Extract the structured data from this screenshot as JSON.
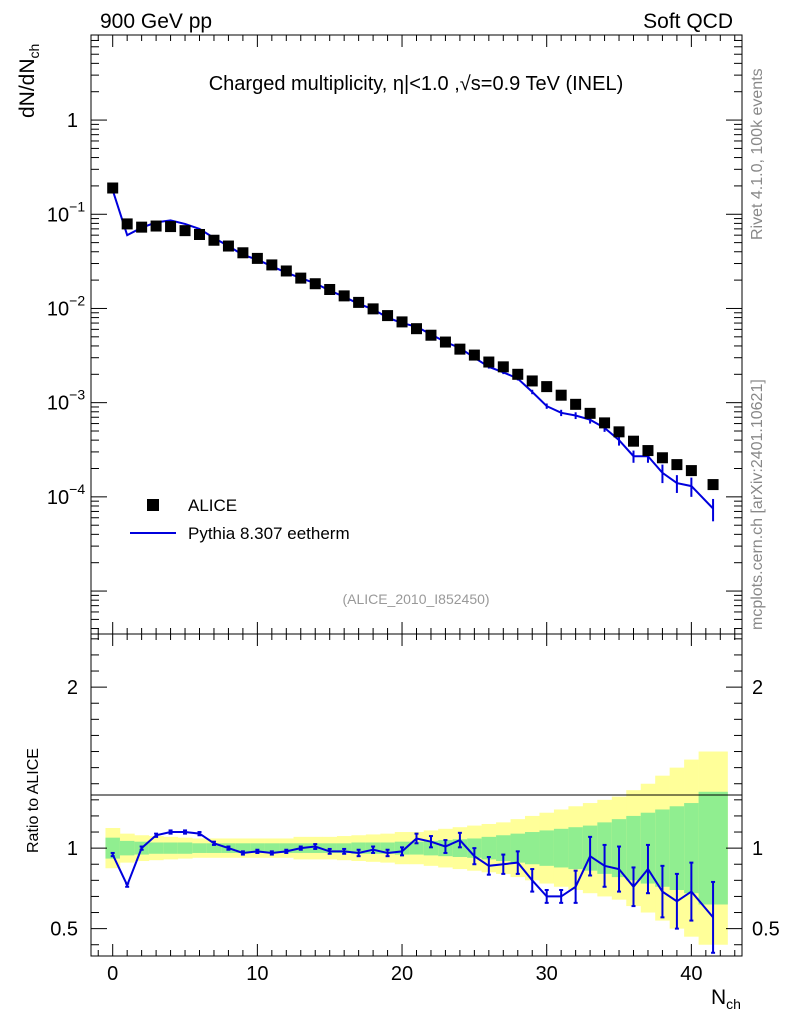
{
  "header": {
    "left": "900 GeV pp",
    "right": "Soft QCD"
  },
  "side_labels": {
    "rivet": "Rivet 4.1.0,  100k events",
    "mcplots": "mcplots.cern.ch [arXiv:2401.10621]"
  },
  "colors": {
    "data": "#000000",
    "mc": "#0000dd",
    "band_inner": "#90ee90",
    "band_outer": "#ffff99",
    "watermark": "#999999"
  },
  "chart_data": [
    {
      "type": "scatter",
      "panel": "main",
      "title": "Charged multiplicity, η|<1.0 ,√s=0.9 TeV (INEL)",
      "ylabel": "dN/dNch",
      "xlabel": "Nch",
      "yscale": "log",
      "xlim": [
        -1.5,
        43.5
      ],
      "ylim": [
        3.5e-06,
        8
      ],
      "yticks": [
        {
          "value": 1,
          "label": "1"
        },
        {
          "value": 0.1,
          "base": "10",
          "exp": "−1"
        },
        {
          "value": 0.01,
          "base": "10",
          "exp": "−2"
        },
        {
          "value": 0.001,
          "base": "10",
          "exp": "−3"
        },
        {
          "value": 0.0001,
          "base": "10",
          "exp": "−4"
        }
      ],
      "watermark": "(ALICE_2010_I852450)",
      "legend": [
        {
          "name": "ALICE",
          "style": "marker"
        },
        {
          "name": "Pythia 8.307 eetherm",
          "style": "line"
        }
      ],
      "series": [
        {
          "name": "ALICE",
          "x": [
            0,
            1,
            2,
            3,
            4,
            5,
            6,
            7,
            8,
            9,
            10,
            11,
            12,
            13,
            14,
            15,
            16,
            17,
            18,
            19,
            20,
            21,
            22,
            23,
            24,
            25,
            26,
            27,
            28,
            29,
            30,
            31,
            32,
            33,
            34,
            35,
            36,
            37,
            38,
            39,
            40,
            41.5
          ],
          "y": [
            0.19,
            0.079,
            0.073,
            0.075,
            0.074,
            0.067,
            0.061,
            0.053,
            0.046,
            0.039,
            0.034,
            0.029,
            0.025,
            0.021,
            0.0183,
            0.0159,
            0.0136,
            0.0116,
            0.0099,
            0.0084,
            0.0072,
            0.0061,
            0.0052,
            0.0044,
            0.0037,
            0.0032,
            0.0027,
            0.0024,
            0.002,
            0.0017,
            0.00148,
            0.0012,
            0.00096,
            0.00077,
            0.00061,
            0.00049,
            0.00039,
            0.00031,
            0.00026,
            0.00022,
            0.00019,
            0.000135
          ]
        },
        {
          "name": "Pythia 8.307 eetherm",
          "x": [
            0,
            1,
            2,
            3,
            4,
            5,
            6,
            7,
            8,
            9,
            10,
            11,
            12,
            13,
            14,
            15,
            16,
            17,
            18,
            19,
            20,
            21,
            22,
            23,
            24,
            25,
            26,
            27,
            28,
            29,
            30,
            31,
            32,
            33,
            34,
            35,
            36,
            37,
            38,
            39,
            40,
            41.5
          ],
          "y": [
            0.18,
            0.06,
            0.072,
            0.082,
            0.086,
            0.079,
            0.07,
            0.056,
            0.046,
            0.037,
            0.033,
            0.028,
            0.024,
            0.021,
            0.0185,
            0.0155,
            0.0133,
            0.0112,
            0.0098,
            0.008,
            0.007,
            0.0064,
            0.0053,
            0.0044,
            0.0038,
            0.003,
            0.0024,
            0.0021,
            0.0018,
            0.0013,
            0.00092,
            0.00078,
            0.00073,
            0.00066,
            0.00054,
            0.0004,
            0.00027,
            0.00027,
            0.00018,
            0.00014,
            0.00013,
            7.5e-05
          ],
          "err": [
            0.002,
            0.001,
            0.001,
            0.001,
            0.001,
            0.001,
            0.001,
            0.0008,
            0.0007,
            0.0006,
            0.0005,
            0.0004,
            0.0004,
            0.0003,
            0.0003,
            0.0003,
            0.0002,
            0.0002,
            0.0002,
            0.0002,
            0.00015,
            0.00015,
            0.00012,
            0.0001,
            0.0001,
            0.0001,
            0.0001,
            9e-05,
            8e-05,
            7e-05,
            6e-05,
            6e-05,
            6e-05,
            6e-05,
            5e-05,
            5e-05,
            4e-05,
            4e-05,
            4e-05,
            3e-05,
            3e-05,
            2e-05
          ]
        }
      ]
    },
    {
      "type": "line",
      "panel": "ratio",
      "ylabel": "Ratio to ALICE",
      "xlabel": "Nch",
      "xlim": [
        -1.5,
        43.5
      ],
      "ylim": [
        0.33,
        2.33
      ],
      "yticks": [
        0.5,
        1,
        2
      ],
      "ytick_labels": [
        "0.5",
        "1",
        "2"
      ],
      "xticks": [
        0,
        10,
        20,
        30,
        40
      ],
      "xtick_labels": [
        "0",
        "10",
        "20",
        "30",
        "40"
      ],
      "bands": {
        "x": [
          -0.5,
          0.5,
          1.5,
          2.5,
          3.5,
          4.5,
          5.5,
          6.5,
          7.5,
          8.5,
          9.5,
          10.5,
          11.5,
          12.5,
          13.5,
          14.5,
          15.5,
          16.5,
          17.5,
          18.5,
          19.5,
          20.5,
          21.5,
          22.5,
          23.5,
          24.5,
          25.5,
          26.5,
          27.5,
          28.5,
          29.5,
          30.5,
          31.5,
          32.5,
          33.5,
          34.5,
          35.5,
          36.5,
          37.5,
          38.5,
          39.5,
          40.5,
          42.5
        ],
        "inner": [
          0.065,
          0.045,
          0.04,
          0.035,
          0.035,
          0.035,
          0.03,
          0.03,
          0.03,
          0.03,
          0.03,
          0.03,
          0.03,
          0.03,
          0.03,
          0.03,
          0.03,
          0.035,
          0.035,
          0.035,
          0.04,
          0.04,
          0.045,
          0.05,
          0.055,
          0.06,
          0.07,
          0.08,
          0.09,
          0.1,
          0.11,
          0.12,
          0.13,
          0.14,
          0.16,
          0.18,
          0.2,
          0.22,
          0.24,
          0.26,
          0.28,
          0.35
        ],
        "outer": [
          0.125,
          0.09,
          0.08,
          0.075,
          0.07,
          0.065,
          0.06,
          0.06,
          0.06,
          0.06,
          0.06,
          0.06,
          0.06,
          0.07,
          0.07,
          0.07,
          0.075,
          0.08,
          0.085,
          0.09,
          0.1,
          0.1,
          0.11,
          0.12,
          0.13,
          0.14,
          0.15,
          0.16,
          0.18,
          0.2,
          0.22,
          0.24,
          0.26,
          0.28,
          0.3,
          0.32,
          0.36,
          0.4,
          0.45,
          0.5,
          0.55,
          0.6
        ]
      },
      "series": [
        {
          "name": "Pythia 8.307 eetherm / ALICE",
          "x": [
            0,
            1,
            2,
            3,
            4,
            5,
            6,
            7,
            8,
            9,
            10,
            11,
            12,
            13,
            14,
            15,
            16,
            17,
            18,
            19,
            20,
            21,
            22,
            23,
            24,
            25,
            26,
            27,
            28,
            29,
            30,
            31,
            32,
            33,
            34,
            35,
            36,
            37,
            38,
            39,
            40,
            41.5
          ],
          "y": [
            0.96,
            0.77,
            1.0,
            1.08,
            1.1,
            1.1,
            1.09,
            1.03,
            1.0,
            0.97,
            0.98,
            0.97,
            0.98,
            1.0,
            1.01,
            0.98,
            0.98,
            0.97,
            0.99,
            0.97,
            0.98,
            1.06,
            1.04,
            1.01,
            1.05,
            0.95,
            0.89,
            0.9,
            0.91,
            0.8,
            0.7,
            0.7,
            0.76,
            0.95,
            0.89,
            0.87,
            0.76,
            0.87,
            0.73,
            0.67,
            0.73,
            0.57
          ],
          "err": [
            0.01,
            0.01,
            0.01,
            0.01,
            0.01,
            0.01,
            0.01,
            0.01,
            0.01,
            0.01,
            0.01,
            0.01,
            0.01,
            0.01,
            0.015,
            0.015,
            0.015,
            0.02,
            0.02,
            0.02,
            0.025,
            0.03,
            0.035,
            0.04,
            0.045,
            0.05,
            0.055,
            0.06,
            0.07,
            0.07,
            0.04,
            0.04,
            0.1,
            0.12,
            0.13,
            0.14,
            0.12,
            0.15,
            0.16,
            0.17,
            0.18,
            0.22
          ]
        }
      ]
    }
  ]
}
